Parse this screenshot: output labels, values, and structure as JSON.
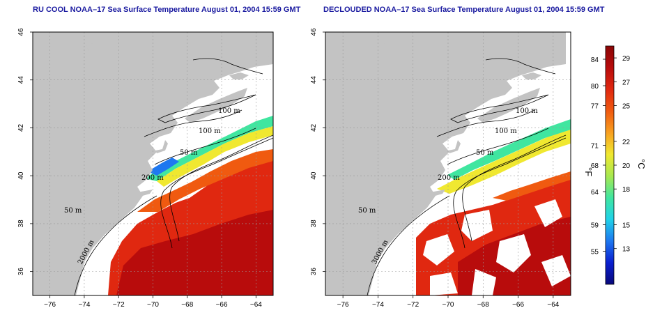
{
  "maps": [
    {
      "title": "RU COOL NOAA–17 Sea Surface Temperature August 01, 2004 15:59 GMT",
      "contour_labels": [
        "100 m",
        "100 m",
        "50 m",
        "200 m",
        "50 m",
        "2000 m"
      ]
    },
    {
      "title": "DECLOUDED NOAA–17 Sea Surface Temperature August 01, 2004 15:59 GMT",
      "contour_labels": [
        "100 m",
        "100 m",
        "50 m",
        "200 m",
        "50 m",
        "3000 m"
      ]
    }
  ],
  "axes": {
    "x_ticks": [
      "−76",
      "−74",
      "−72",
      "−70",
      "−68",
      "−66",
      "−64"
    ],
    "y_ticks": [
      "36",
      "38",
      "40",
      "42",
      "44",
      "46"
    ],
    "lon_range": [
      -77.0,
      -63.0
    ],
    "lat_range": [
      35.0,
      46.0
    ]
  },
  "colorbar": {
    "fahrenheit_ticks": [
      "84",
      "80",
      "77",
      "71",
      "68",
      "64",
      "59",
      "55"
    ],
    "celsius_ticks": [
      "29",
      "27",
      "25",
      "22",
      "20",
      "18",
      "15",
      "13"
    ],
    "fahrenheit_unit": "°F",
    "celsius_unit": "°C",
    "range_c": [
      10,
      30
    ],
    "colors": [
      "#08087a",
      "#0a1fd0",
      "#1e78f0",
      "#20d2e8",
      "#40e6a0",
      "#a8e850",
      "#f0e830",
      "#f8a020",
      "#f05a10",
      "#e02810",
      "#b80c0c",
      "#8a0606"
    ]
  },
  "colors": {
    "land": "#c3c3c3",
    "water": "#ffffff",
    "title": "#1a1aa0"
  }
}
